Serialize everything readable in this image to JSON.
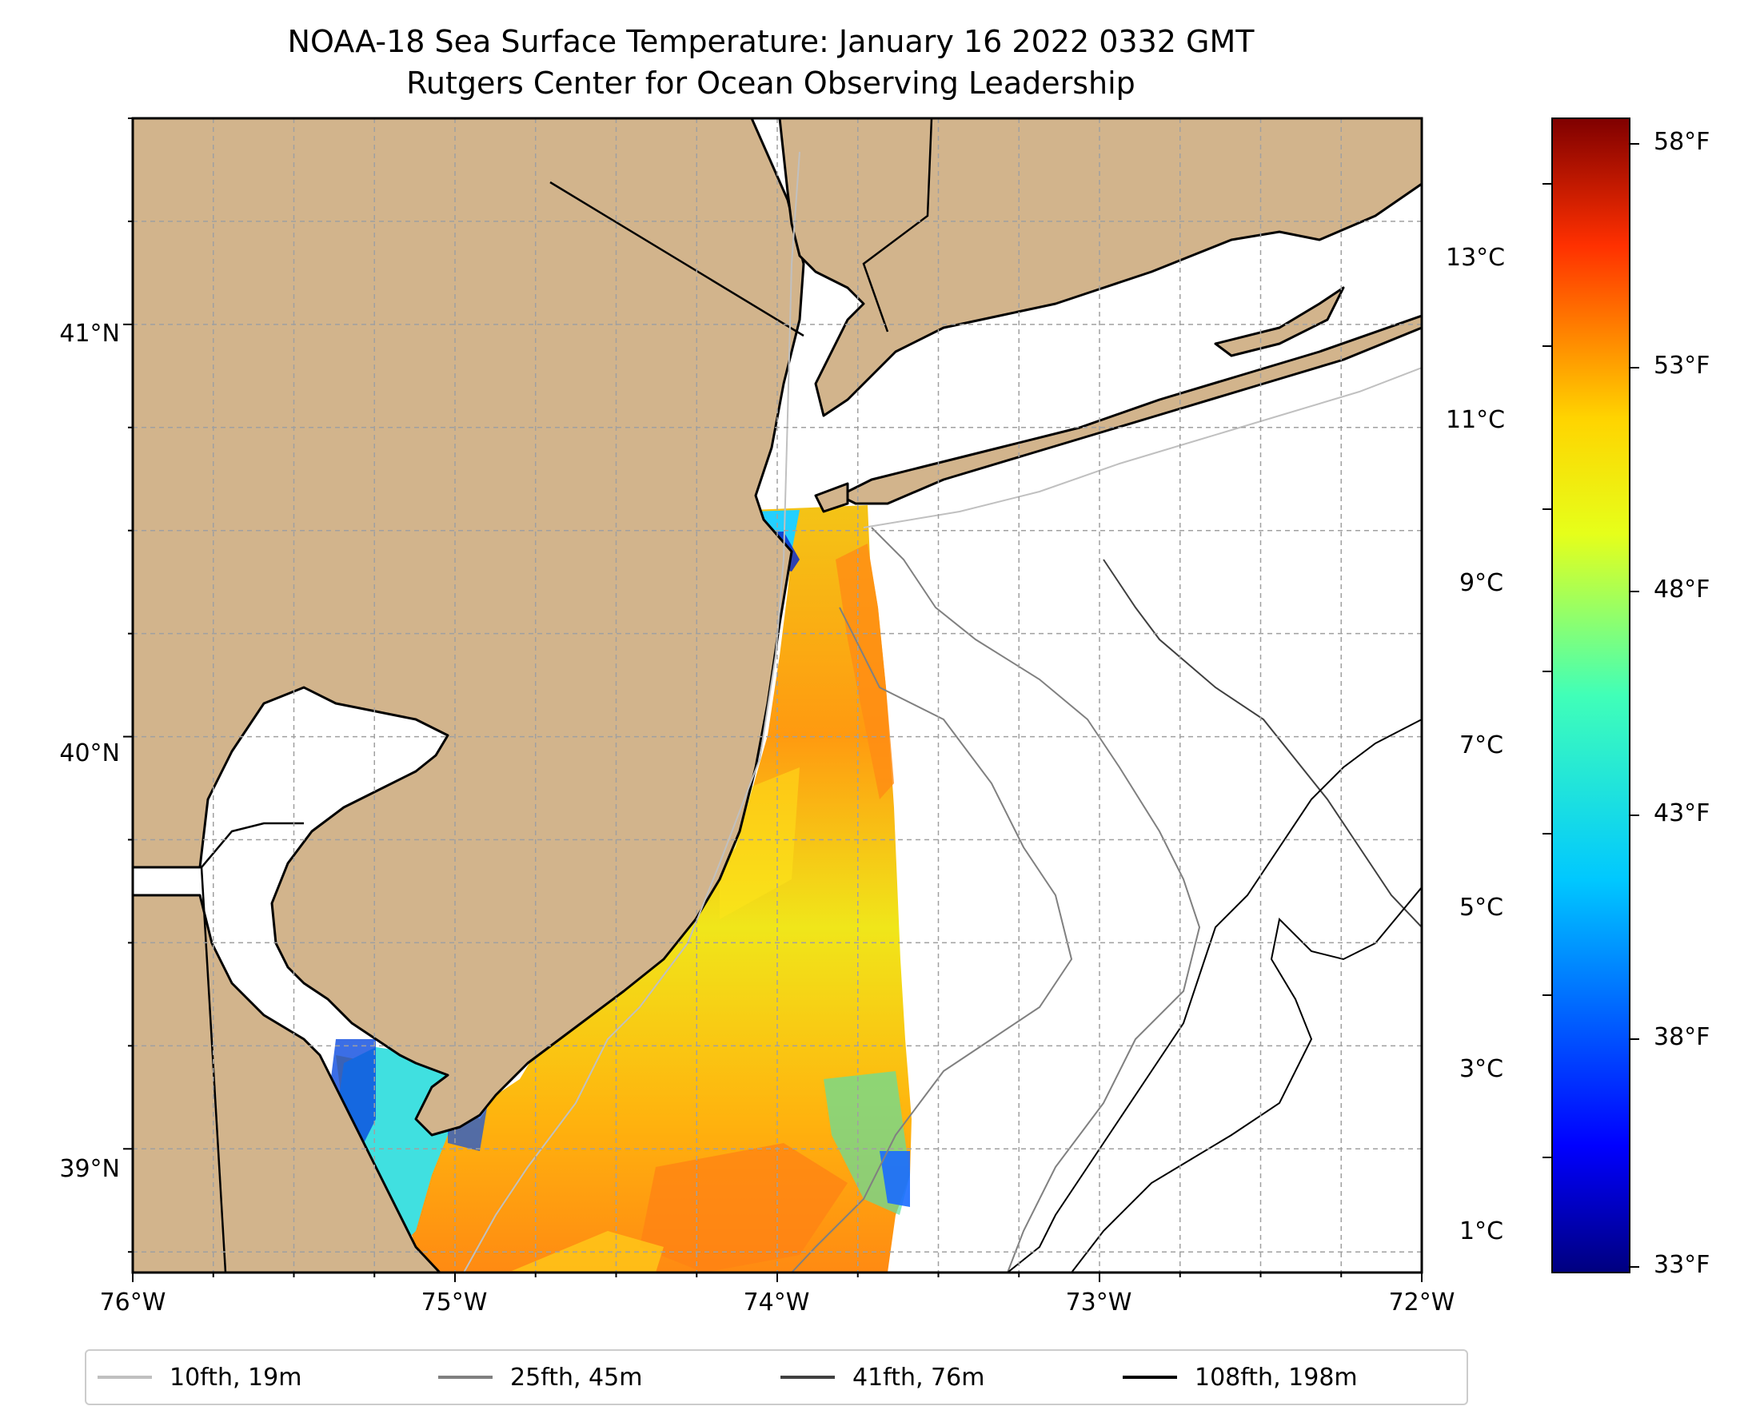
{
  "title": "NOAA-18 Sea Surface Temperature: January 16 2022 0332 GMT",
  "subtitle": "Rutgers Center for Ocean Observing Leadership",
  "colors": {
    "land": "#d2b48c",
    "coastline": "#000000",
    "grid": "#a0a0a0",
    "contour_10fth": "#c0c0c0",
    "contour_25fth": "#808080",
    "contour_41fth": "#404040",
    "contour_108fth": "#000000"
  },
  "colorscale": "jet",
  "map": {
    "lon_range": [
      -76,
      -72
    ],
    "lat_range": [
      38.7,
      41.5
    ],
    "x_ticks": [
      "76°W",
      "75°W",
      "74°W",
      "73°W",
      "72°W"
    ],
    "y_ticks": [
      "41°N",
      "40°N",
      "39°N"
    ],
    "gridlines": true
  },
  "colorbar": {
    "celsius_ticks": [
      "13°C",
      "11°C",
      "9°C",
      "7°C",
      "5°C",
      "3°C",
      "1°C"
    ],
    "fahrenheit_ticks": [
      "58°F",
      "53°F",
      "48°F",
      "43°F",
      "38°F",
      "33°F"
    ]
  },
  "legend": [
    {
      "label": "10fth, 19m",
      "color": "#c0c0c0"
    },
    {
      "label": "25fth, 45m",
      "color": "#808080"
    },
    {
      "label": "41fth, 76m",
      "color": "#404040"
    },
    {
      "label": "108fth, 198m",
      "color": "#000000"
    }
  ]
}
